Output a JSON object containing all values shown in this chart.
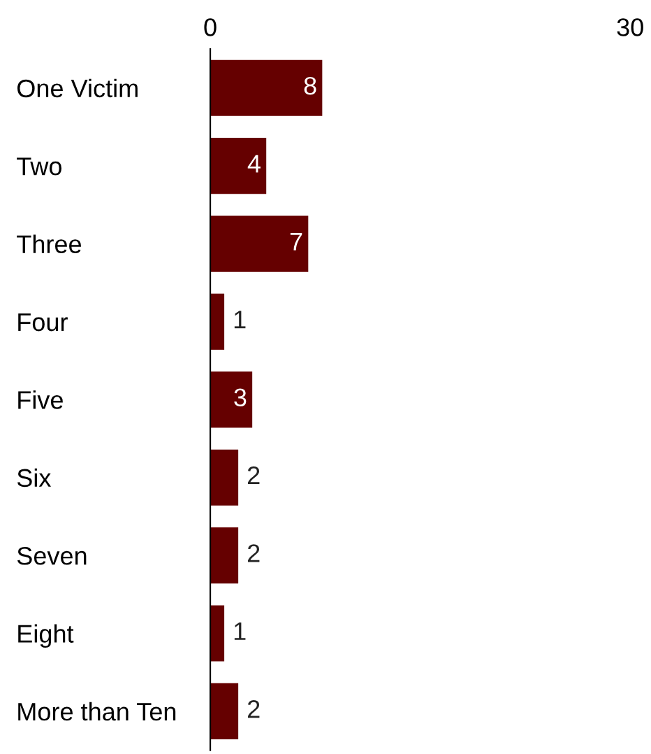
{
  "chart_data": {
    "type": "bar",
    "orientation": "horizontal",
    "categories": [
      "One Victim",
      "Two",
      "Three",
      "Four",
      "Five",
      "Six",
      "Seven",
      "Eight",
      "More than Ten"
    ],
    "values": [
      8,
      4,
      7,
      1,
      3,
      2,
      2,
      1,
      2
    ],
    "color": "#650000",
    "xlim": [
      0,
      30
    ],
    "xticks": [
      0,
      30
    ],
    "grid": false,
    "data_labels": true
  }
}
